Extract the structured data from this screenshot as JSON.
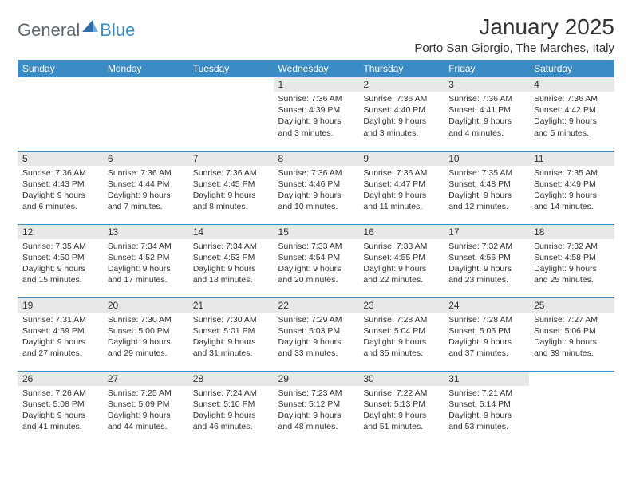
{
  "logo": {
    "general": "General",
    "blue": "Blue"
  },
  "title": "January 2025",
  "location": "Porto San Giorgio, The Marches, Italy",
  "header_bg": "#3b8bc4",
  "daynum_bg": "#e8e8e8",
  "border_color": "#3b8bc4",
  "weekdays": [
    "Sunday",
    "Monday",
    "Tuesday",
    "Wednesday",
    "Thursday",
    "Friday",
    "Saturday"
  ],
  "weeks": [
    [
      {
        "n": "",
        "lines": [
          "",
          "",
          "",
          ""
        ]
      },
      {
        "n": "",
        "lines": [
          "",
          "",
          "",
          ""
        ]
      },
      {
        "n": "",
        "lines": [
          "",
          "",
          "",
          ""
        ]
      },
      {
        "n": "1",
        "lines": [
          "Sunrise: 7:36 AM",
          "Sunset: 4:39 PM",
          "Daylight: 9 hours",
          "and 3 minutes."
        ]
      },
      {
        "n": "2",
        "lines": [
          "Sunrise: 7:36 AM",
          "Sunset: 4:40 PM",
          "Daylight: 9 hours",
          "and 3 minutes."
        ]
      },
      {
        "n": "3",
        "lines": [
          "Sunrise: 7:36 AM",
          "Sunset: 4:41 PM",
          "Daylight: 9 hours",
          "and 4 minutes."
        ]
      },
      {
        "n": "4",
        "lines": [
          "Sunrise: 7:36 AM",
          "Sunset: 4:42 PM",
          "Daylight: 9 hours",
          "and 5 minutes."
        ]
      }
    ],
    [
      {
        "n": "5",
        "lines": [
          "Sunrise: 7:36 AM",
          "Sunset: 4:43 PM",
          "Daylight: 9 hours",
          "and 6 minutes."
        ]
      },
      {
        "n": "6",
        "lines": [
          "Sunrise: 7:36 AM",
          "Sunset: 4:44 PM",
          "Daylight: 9 hours",
          "and 7 minutes."
        ]
      },
      {
        "n": "7",
        "lines": [
          "Sunrise: 7:36 AM",
          "Sunset: 4:45 PM",
          "Daylight: 9 hours",
          "and 8 minutes."
        ]
      },
      {
        "n": "8",
        "lines": [
          "Sunrise: 7:36 AM",
          "Sunset: 4:46 PM",
          "Daylight: 9 hours",
          "and 10 minutes."
        ]
      },
      {
        "n": "9",
        "lines": [
          "Sunrise: 7:36 AM",
          "Sunset: 4:47 PM",
          "Daylight: 9 hours",
          "and 11 minutes."
        ]
      },
      {
        "n": "10",
        "lines": [
          "Sunrise: 7:35 AM",
          "Sunset: 4:48 PM",
          "Daylight: 9 hours",
          "and 12 minutes."
        ]
      },
      {
        "n": "11",
        "lines": [
          "Sunrise: 7:35 AM",
          "Sunset: 4:49 PM",
          "Daylight: 9 hours",
          "and 14 minutes."
        ]
      }
    ],
    [
      {
        "n": "12",
        "lines": [
          "Sunrise: 7:35 AM",
          "Sunset: 4:50 PM",
          "Daylight: 9 hours",
          "and 15 minutes."
        ]
      },
      {
        "n": "13",
        "lines": [
          "Sunrise: 7:34 AM",
          "Sunset: 4:52 PM",
          "Daylight: 9 hours",
          "and 17 minutes."
        ]
      },
      {
        "n": "14",
        "lines": [
          "Sunrise: 7:34 AM",
          "Sunset: 4:53 PM",
          "Daylight: 9 hours",
          "and 18 minutes."
        ]
      },
      {
        "n": "15",
        "lines": [
          "Sunrise: 7:33 AM",
          "Sunset: 4:54 PM",
          "Daylight: 9 hours",
          "and 20 minutes."
        ]
      },
      {
        "n": "16",
        "lines": [
          "Sunrise: 7:33 AM",
          "Sunset: 4:55 PM",
          "Daylight: 9 hours",
          "and 22 minutes."
        ]
      },
      {
        "n": "17",
        "lines": [
          "Sunrise: 7:32 AM",
          "Sunset: 4:56 PM",
          "Daylight: 9 hours",
          "and 23 minutes."
        ]
      },
      {
        "n": "18",
        "lines": [
          "Sunrise: 7:32 AM",
          "Sunset: 4:58 PM",
          "Daylight: 9 hours",
          "and 25 minutes."
        ]
      }
    ],
    [
      {
        "n": "19",
        "lines": [
          "Sunrise: 7:31 AM",
          "Sunset: 4:59 PM",
          "Daylight: 9 hours",
          "and 27 minutes."
        ]
      },
      {
        "n": "20",
        "lines": [
          "Sunrise: 7:30 AM",
          "Sunset: 5:00 PM",
          "Daylight: 9 hours",
          "and 29 minutes."
        ]
      },
      {
        "n": "21",
        "lines": [
          "Sunrise: 7:30 AM",
          "Sunset: 5:01 PM",
          "Daylight: 9 hours",
          "and 31 minutes."
        ]
      },
      {
        "n": "22",
        "lines": [
          "Sunrise: 7:29 AM",
          "Sunset: 5:03 PM",
          "Daylight: 9 hours",
          "and 33 minutes."
        ]
      },
      {
        "n": "23",
        "lines": [
          "Sunrise: 7:28 AM",
          "Sunset: 5:04 PM",
          "Daylight: 9 hours",
          "and 35 minutes."
        ]
      },
      {
        "n": "24",
        "lines": [
          "Sunrise: 7:28 AM",
          "Sunset: 5:05 PM",
          "Daylight: 9 hours",
          "and 37 minutes."
        ]
      },
      {
        "n": "25",
        "lines": [
          "Sunrise: 7:27 AM",
          "Sunset: 5:06 PM",
          "Daylight: 9 hours",
          "and 39 minutes."
        ]
      }
    ],
    [
      {
        "n": "26",
        "lines": [
          "Sunrise: 7:26 AM",
          "Sunset: 5:08 PM",
          "Daylight: 9 hours",
          "and 41 minutes."
        ]
      },
      {
        "n": "27",
        "lines": [
          "Sunrise: 7:25 AM",
          "Sunset: 5:09 PM",
          "Daylight: 9 hours",
          "and 44 minutes."
        ]
      },
      {
        "n": "28",
        "lines": [
          "Sunrise: 7:24 AM",
          "Sunset: 5:10 PM",
          "Daylight: 9 hours",
          "and 46 minutes."
        ]
      },
      {
        "n": "29",
        "lines": [
          "Sunrise: 7:23 AM",
          "Sunset: 5:12 PM",
          "Daylight: 9 hours",
          "and 48 minutes."
        ]
      },
      {
        "n": "30",
        "lines": [
          "Sunrise: 7:22 AM",
          "Sunset: 5:13 PM",
          "Daylight: 9 hours",
          "and 51 minutes."
        ]
      },
      {
        "n": "31",
        "lines": [
          "Sunrise: 7:21 AM",
          "Sunset: 5:14 PM",
          "Daylight: 9 hours",
          "and 53 minutes."
        ]
      },
      {
        "n": "",
        "lines": [
          "",
          "",
          "",
          ""
        ]
      }
    ]
  ]
}
